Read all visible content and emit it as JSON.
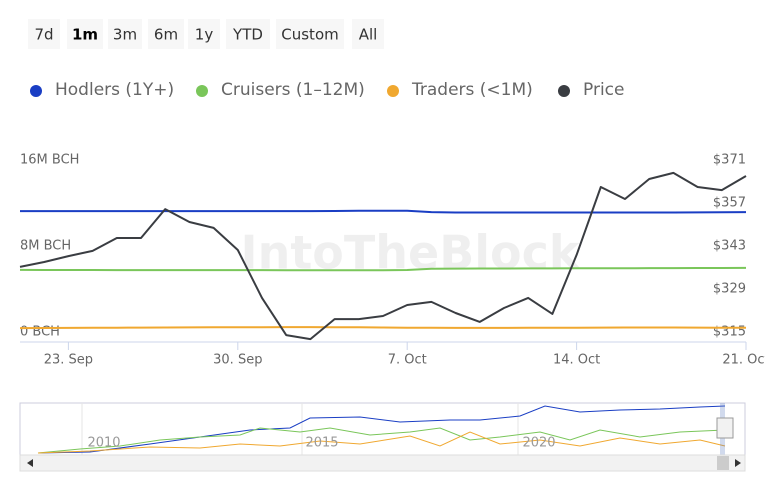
{
  "range_selector": {
    "buttons": [
      "7d",
      "1m",
      "3m",
      "6m",
      "1y",
      "YTD",
      "Custom",
      "All"
    ],
    "selected": "1m"
  },
  "watermark": "IntoTheBlock",
  "navigator": {
    "labels": [
      "2010",
      "2015",
      "2020"
    ]
  },
  "chart_data": {
    "type": "line",
    "categories": [
      null,
      null,
      "23. Sep",
      null,
      null,
      null,
      null,
      null,
      null,
      "30. Sep",
      null,
      null,
      null,
      null,
      null,
      null,
      "7. Oct",
      null,
      null,
      null,
      null,
      null,
      null,
      "14. Oct",
      null,
      null,
      null,
      null,
      null,
      null,
      "21. Oct"
    ],
    "series": [
      {
        "name": "Hodlers (1Y+)",
        "color": "#1a3ec4",
        "values": [
          11250000,
          11250000,
          11250000,
          11250000,
          11250000,
          11250000,
          11250000,
          11250000,
          11250000,
          11250000,
          11250000,
          11250000,
          11250000,
          11260000,
          11270000,
          11280000,
          11280000,
          11150000,
          11120000,
          11120000,
          11120000,
          11120000,
          11120000,
          11120000,
          11120000,
          11120000,
          11120000,
          11120000,
          11130000,
          11140000,
          11150000
        ]
      },
      {
        "name": "Cruisers (1–12M)",
        "color": "#7ac65a",
        "values": [
          5780000,
          5770000,
          5770000,
          5770000,
          5760000,
          5760000,
          5760000,
          5760000,
          5760000,
          5760000,
          5760000,
          5750000,
          5750000,
          5750000,
          5750000,
          5750000,
          5770000,
          5880000,
          5900000,
          5910000,
          5910000,
          5920000,
          5920000,
          5930000,
          5930000,
          5930000,
          5940000,
          5940000,
          5950000,
          5950000,
          5960000
        ]
      },
      {
        "name": "Traders (<1M)",
        "color": "#f0a830",
        "values": [
          360000,
          370000,
          380000,
          390000,
          400000,
          410000,
          420000,
          430000,
          440000,
          440000,
          450000,
          460000,
          460000,
          450000,
          440000,
          420000,
          400000,
          390000,
          380000,
          380000,
          380000,
          390000,
          390000,
          400000,
          410000,
          420000,
          420000,
          420000,
          410000,
          400000,
          400000
        ]
      },
      {
        "name": "Price",
        "color": "#3a3d42",
        "axis": "y2",
        "values": [
          336.2,
          337.8,
          339.7,
          341.4,
          345.6,
          345.6,
          355.0,
          350.8,
          348.9,
          341.7,
          326.1,
          314.0,
          312.7,
          319.2,
          319.2,
          320.2,
          323.8,
          324.8,
          321.2,
          318.3,
          322.8,
          326.1,
          320.9,
          340.1,
          362.2,
          358.3,
          364.8,
          366.8,
          362.2,
          361.2,
          365.8
        ]
      }
    ],
    "ylim": [
      0,
      16000000
    ],
    "yticks": [
      {
        "value": 0,
        "label": "0 BCH"
      },
      {
        "value": 8000000,
        "label": "8M BCH"
      },
      {
        "value": 16000000,
        "label": "16M BCH"
      }
    ],
    "y2lim": [
      315,
      371
    ],
    "y2ticks": [
      {
        "value": 315,
        "label": "$315"
      },
      {
        "value": 329,
        "label": "$329"
      },
      {
        "value": 343,
        "label": "$343"
      },
      {
        "value": 357,
        "label": "$357"
      },
      {
        "value": 371,
        "label": "$371"
      }
    ]
  }
}
